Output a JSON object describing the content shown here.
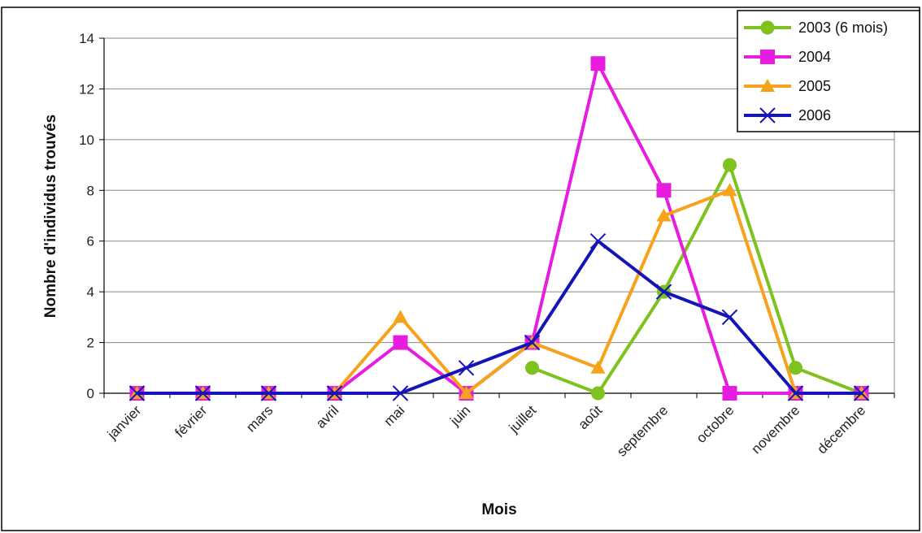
{
  "chart_data": {
    "type": "line",
    "xlabel": "Mois",
    "ylabel": "Nombre d'individus trouvés",
    "ylim": [
      0,
      14
    ],
    "yticks": [
      0,
      2,
      4,
      6,
      8,
      10,
      12,
      14
    ],
    "grid": true,
    "legend_position": "top-right",
    "categories": [
      "janvier",
      "février",
      "mars",
      "avril",
      "mai",
      "juin",
      "juillet",
      "août",
      "septembre",
      "octobre",
      "novembre",
      "décembre"
    ],
    "series": [
      {
        "name": "2003 (6 mois)",
        "color": "#7DC21E",
        "marker": "circle",
        "values": [
          null,
          null,
          null,
          null,
          null,
          null,
          1,
          0,
          4,
          9,
          1,
          0
        ]
      },
      {
        "name": "2004",
        "color": "#E81CE0",
        "marker": "square",
        "values": [
          0,
          0,
          0,
          0,
          2,
          0,
          2,
          13,
          8,
          0,
          0,
          0
        ]
      },
      {
        "name": "2005",
        "color": "#F7A21B",
        "marker": "triangle",
        "values": [
          0,
          0,
          0,
          0,
          3,
          0,
          2,
          1,
          7,
          8,
          0,
          0
        ]
      },
      {
        "name": "2006",
        "color": "#1414B8",
        "marker": "x",
        "values": [
          0,
          0,
          0,
          0,
          0,
          1,
          2,
          6,
          4,
          3,
          0,
          0
        ]
      }
    ]
  }
}
